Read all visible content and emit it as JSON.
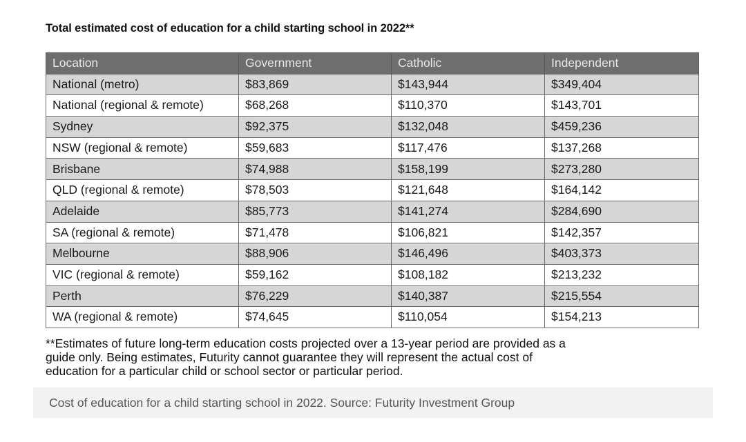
{
  "title": "Total estimated cost of education for a child starting school in 2022**",
  "table": {
    "headers": [
      "Location",
      "Government",
      "Catholic",
      "Independent"
    ],
    "rows": [
      [
        "National (metro)",
        "$83,869",
        "$143,944",
        "$349,404"
      ],
      [
        "National (regional & remote)",
        "$68,268",
        "$110,370",
        "$143,701"
      ],
      [
        "Sydney",
        "$92,375",
        "$132,048",
        "$459,236"
      ],
      [
        "NSW (regional & remote)",
        "$59,683",
        "$117,476",
        "$137,268"
      ],
      [
        "Brisbane",
        "$74,988",
        "$158,199",
        "$273,280"
      ],
      [
        "QLD (regional & remote)",
        "$78,503",
        "$121,648",
        "$164,142"
      ],
      [
        "Adelaide",
        "$85,773",
        "$141,274",
        "$284,690"
      ],
      [
        "SA (regional & remote)",
        "$71,478",
        "$106,821",
        "$142,357"
      ],
      [
        "Melbourne",
        "$88,906",
        "$146,496",
        "$403,373"
      ],
      [
        "VIC (regional & remote)",
        "$59,162",
        "$108,182",
        "$213,232"
      ],
      [
        "Perth",
        "$76,229",
        "$140,387",
        "$215,554"
      ],
      [
        "WA (regional & remote)",
        "$74,645",
        "$110,054",
        "$154,213"
      ]
    ]
  },
  "footnote": {
    "lines": [
      "**Estimates of future long-term education costs projected over a 13-year period are provided as a",
      "guide only. Being estimates, Futurity cannot guarantee they will represent the actual cost of",
      "education for a particular child or school sector or particular period."
    ]
  },
  "caption": "Cost of education for a child starting school in 2022. Source: Futurity Investment Group",
  "colors": {
    "header_bg": "#6e6e6e",
    "header_text": "#e8e8e8",
    "shaded_row": "#d6d6d6",
    "caption_bg": "#f2f2f2"
  }
}
